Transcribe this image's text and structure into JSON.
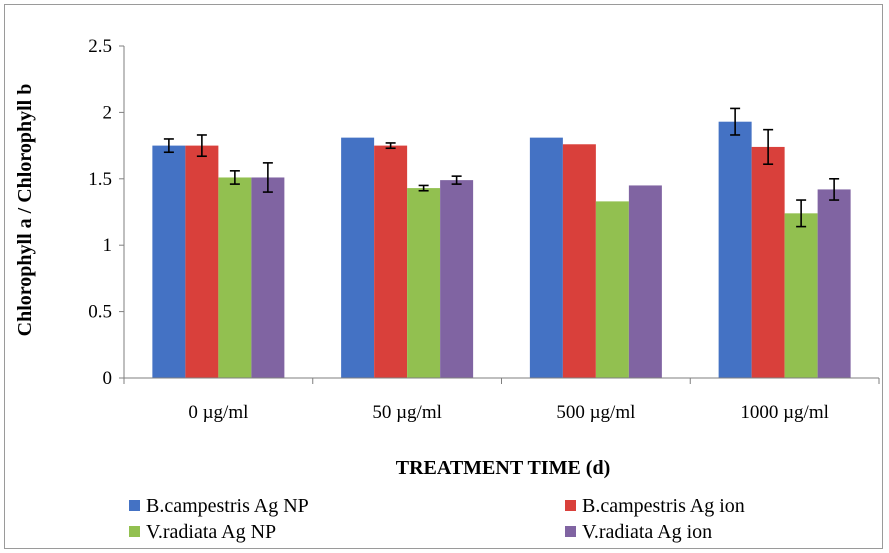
{
  "chart_data": {
    "type": "bar",
    "categories": [
      "0 µg/ml",
      "50 µg/ml",
      "500 µg/ml",
      "1000 µg/ml"
    ],
    "series": [
      {
        "name": "B.campestris Ag NP",
        "color": "#4472C4",
        "values": [
          1.75,
          1.81,
          1.81,
          1.93
        ],
        "errors": [
          0.05,
          null,
          null,
          0.1
        ]
      },
      {
        "name": "B.campestris Ag ion",
        "color": "#D9403B",
        "values": [
          1.75,
          1.75,
          1.76,
          1.74
        ],
        "errors": [
          0.08,
          0.02,
          null,
          0.13
        ]
      },
      {
        "name": "V.radiata Ag NP",
        "color": "#92C050",
        "values": [
          1.51,
          1.43,
          1.33,
          1.24
        ],
        "errors": [
          0.05,
          0.02,
          null,
          0.1
        ]
      },
      {
        "name": "V.radiata Ag ion",
        "color": "#8064A2",
        "values": [
          1.51,
          1.49,
          1.45,
          1.42
        ],
        "errors": [
          0.11,
          0.03,
          null,
          0.08
        ]
      }
    ],
    "ylim": [
      0,
      2.5
    ],
    "yticks": [
      "0",
      "0.5",
      "1",
      "1.5",
      "2",
      "2.5"
    ],
    "xlabel": "TREATMENT TIME (d)",
    "ylabel": "Chlorophyll a / Chlorophyll b",
    "legend_position": "bottom",
    "grid": false
  }
}
